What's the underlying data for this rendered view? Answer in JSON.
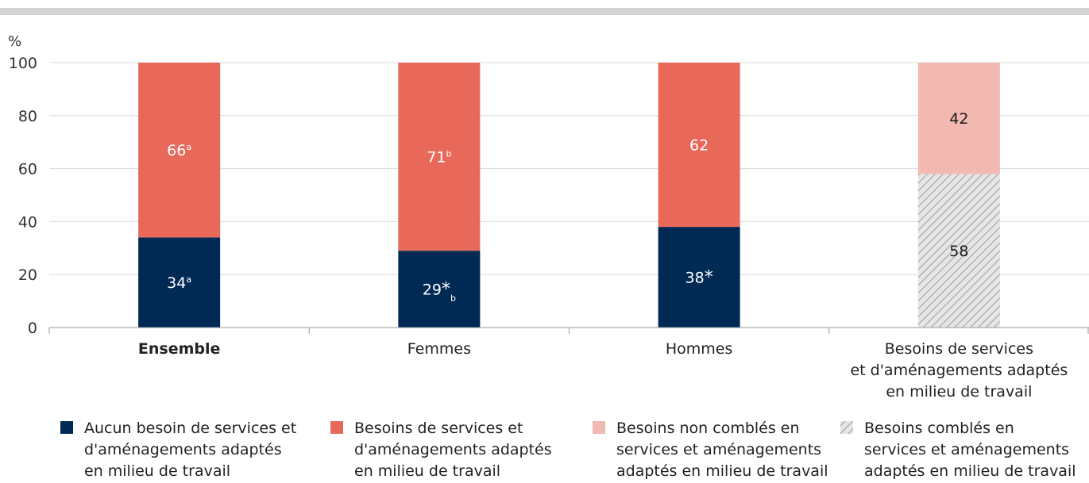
{
  "colors": {
    "navy": "#002a54",
    "coral": "#e8695a",
    "pink": "#f2b8b2",
    "hatch_bg": "#e6e6e6",
    "hatch_line": "#b3b3b3",
    "grid": "#d9d9d9",
    "top_band": "#d3d3d3",
    "text": "#333333"
  },
  "chart_data": {
    "type": "bar",
    "stacked": true,
    "ylabel": "%",
    "ylim": [
      0,
      100
    ],
    "yticks": [
      "0",
      "20",
      "40",
      "60",
      "80",
      "100"
    ],
    "grid": true,
    "legend_position": "bottom",
    "categories": [
      {
        "lines": [
          "Ensemble"
        ],
        "bold": true
      },
      {
        "lines": [
          "Femmes"
        ],
        "bold": false
      },
      {
        "lines": [
          "Hommes"
        ],
        "bold": false
      },
      {
        "lines": [
          "Besoins de services",
          "et d'aménagements adaptés",
          "en milieu de travail"
        ],
        "bold": false
      }
    ],
    "bars": [
      [
        {
          "series": "aucun",
          "value": 34,
          "label": "34",
          "marks": [
            {
              "text": "a",
              "style": "sup"
            }
          ]
        },
        {
          "series": "besoins",
          "value": 66,
          "label": "66",
          "marks": [
            {
              "text": "a",
              "style": "sup"
            }
          ]
        }
      ],
      [
        {
          "series": "aucun",
          "value": 29,
          "label": "29",
          "marks": [
            {
              "text": "*",
              "style": "star"
            },
            {
              "text": "b",
              "style": "sub"
            }
          ]
        },
        {
          "series": "besoins",
          "value": 71,
          "label": "71",
          "marks": [
            {
              "text": "b",
              "style": "sup"
            }
          ]
        }
      ],
      [
        {
          "series": "aucun",
          "value": 38,
          "label": "38",
          "marks": [
            {
              "text": "*",
              "style": "star"
            }
          ]
        },
        {
          "series": "besoins",
          "value": 62,
          "label": "62",
          "marks": []
        }
      ],
      [
        {
          "series": "combles",
          "value": 58,
          "label": "58",
          "marks": []
        },
        {
          "series": "non_combles",
          "value": 42,
          "label": "42",
          "marks": []
        }
      ]
    ],
    "series": [
      {
        "id": "aucun",
        "name": "Aucun besoin de services et d'aménagements adaptés en milieu de travail",
        "legend_lines": [
          "Aucun besoin de services et",
          "d'aménagements adaptés",
          "en milieu de travail"
        ],
        "color": "#002a54",
        "label_color": "#ffffff"
      },
      {
        "id": "besoins",
        "name": "Besoins de services et d'aménagements adaptés en milieu de travail",
        "legend_lines": [
          "Besoins de services et",
          "d'aménagements adaptés",
          "en milieu de travail"
        ],
        "color": "#e8695a",
        "label_color": "#ffffff"
      },
      {
        "id": "non_combles",
        "name": "Besoins non comblés en services et aménagements adaptés en milieu de travail",
        "legend_lines": [
          "Besoins non comblés en",
          "services et aménagements",
          "adaptés en milieu de travail"
        ],
        "color": "#f2b8b2",
        "label_color": "#1a1a1a"
      },
      {
        "id": "combles",
        "name": "Besoins comblés en services et aménagements adaptés en milieu de travail",
        "legend_lines": [
          "Besoins comblés en",
          "services et aménagements",
          "adaptés en milieu de travail"
        ],
        "color": "hatch",
        "label_color": "#1a1a1a"
      }
    ]
  }
}
